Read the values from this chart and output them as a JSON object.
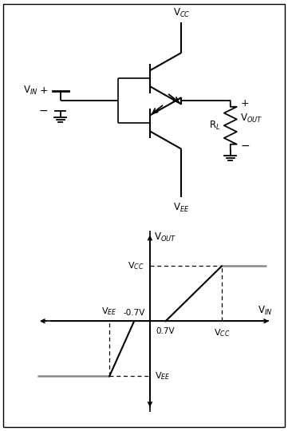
{
  "fig_width": 3.61,
  "fig_height": 5.4,
  "bg_color": "#ffffff",
  "line_color": "#000000",
  "gray_color": "#888888",
  "circuit": {
    "vcc_label": "V$_{CC}$",
    "vee_label": "V$_{EE}$",
    "vin_label": "V$_{IN}$",
    "vout_label": "V$_{OUT}$",
    "rl_label": "R$_L$"
  },
  "graph": {
    "vout_label": "V$_{OUT}$",
    "vin_label": "V$_{IN}$",
    "vcc_label": "V$_{CC}$",
    "vee_label": "V$_{EE}$",
    "label_07p": "0.7V",
    "label_07n": "-0.7V",
    "VCC": 2.5,
    "VEE": -2.5,
    "vbe": 0.7,
    "xlim": [
      -5.0,
      5.5
    ],
    "ylim": [
      -4.2,
      4.2
    ]
  }
}
